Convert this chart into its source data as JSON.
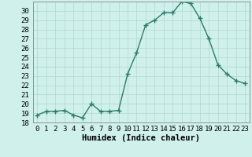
{
  "x": [
    0,
    1,
    2,
    3,
    4,
    5,
    6,
    7,
    8,
    9,
    10,
    11,
    12,
    13,
    14,
    15,
    16,
    17,
    18,
    19,
    20,
    21,
    22,
    23
  ],
  "y": [
    18.8,
    19.2,
    19.2,
    19.3,
    18.8,
    18.5,
    20.0,
    19.2,
    19.2,
    19.3,
    23.2,
    25.5,
    28.5,
    29.0,
    29.8,
    29.8,
    31.0,
    30.8,
    29.2,
    27.0,
    24.2,
    23.2,
    22.5,
    22.2
  ],
  "line_color": "#2d7b6b",
  "marker": "+",
  "marker_size": 4,
  "marker_lw": 1.0,
  "bg_color": "#cff0eb",
  "grid_color": "#b0d8d0",
  "xlabel": "Humidex (Indice chaleur)",
  "xlim": [
    -0.5,
    23.5
  ],
  "ylim": [
    18,
    31
  ],
  "yticks": [
    18,
    19,
    20,
    21,
    22,
    23,
    24,
    25,
    26,
    27,
    28,
    29,
    30
  ],
  "xticks": [
    0,
    1,
    2,
    3,
    4,
    5,
    6,
    7,
    8,
    9,
    10,
    11,
    12,
    13,
    14,
    15,
    16,
    17,
    18,
    19,
    20,
    21,
    22,
    23
  ],
  "tick_fontsize": 6.5,
  "label_fontsize": 7.5,
  "line_width": 1.0
}
